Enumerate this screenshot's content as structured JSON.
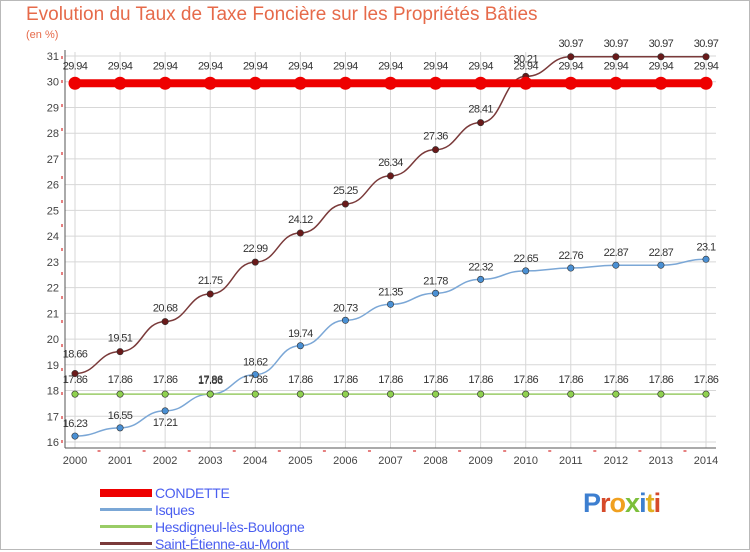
{
  "header": {
    "title": "Evolution du Taux de Taxe Foncière sur les Propriétés Bâties",
    "unit": "(en %)"
  },
  "logo": {
    "text": "Proxiti"
  },
  "colors": {
    "title": "#e66a4a",
    "grid": "#d7d7d7",
    "axis_marks": "#cc0000",
    "legend_text": "#4a5ef0"
  },
  "chart_data": {
    "type": "line",
    "title": "Evolution du Taux de Taxe Foncière sur les Propriétés Bâties",
    "ylabel": "(en %)",
    "xlabel": "",
    "x": [
      "2000",
      "2001",
      "2002",
      "2003",
      "2004",
      "2005",
      "2006",
      "2007",
      "2008",
      "2009",
      "2010",
      "2011",
      "2012",
      "2013",
      "2014"
    ],
    "ylim": [
      16,
      31
    ],
    "yticks": [
      16,
      17,
      18,
      19,
      20,
      21,
      22,
      23,
      24,
      25,
      26,
      27,
      28,
      29,
      30,
      31
    ],
    "grid": true,
    "legend_position": "bottom-left",
    "series": [
      {
        "name": "CONDETTE",
        "color": "#ee0000",
        "width": 8,
        "marker": "#ee0000",
        "values": [
          29.94,
          29.94,
          29.94,
          29.94,
          29.94,
          29.94,
          29.94,
          29.94,
          29.94,
          29.94,
          29.94,
          29.94,
          29.94,
          29.94,
          29.94
        ],
        "labels": [
          "29.94",
          "29.94",
          "29.94",
          "29.94",
          "29.94",
          "29.94",
          "29.94",
          "29.94",
          "29.94",
          "29.94",
          "29.94",
          "29.94",
          "29.94",
          "29.94",
          "29.94"
        ]
      },
      {
        "name": "Isques",
        "color": "#7ba7d6",
        "width": 1.5,
        "marker": "#4a90d4",
        "values": [
          16.23,
          16.55,
          17.21,
          17.86,
          18.62,
          19.74,
          20.73,
          21.35,
          21.78,
          22.32,
          22.65,
          22.76,
          22.87,
          22.87,
          23.1
        ],
        "labels": [
          "16.23",
          "16.55",
          "17.21",
          "17.86",
          "18.62",
          "19.74",
          "20.73",
          "21.35",
          "21.78",
          "22.32",
          "22.65",
          "22.76",
          "22.87",
          "22.87",
          "23.1"
        ]
      },
      {
        "name": "Hesdigneul-lès-Boulogne",
        "color": "#99cc66",
        "width": 1.5,
        "marker": "#8fd14f",
        "values": [
          17.86,
          17.86,
          17.86,
          17.86,
          17.86,
          17.86,
          17.86,
          17.86,
          17.86,
          17.86,
          17.86,
          17.86,
          17.86,
          17.86,
          17.86
        ],
        "labels": [
          "17.86",
          "17.86",
          "17.86",
          "17.86",
          "17.86",
          "17.86",
          "17.86",
          "17.86",
          "17.86",
          "17.86",
          "17.86",
          "17.86",
          "17.86",
          "17.86",
          "17.86"
        ]
      },
      {
        "name": "Saint-Étienne-au-Mont",
        "color": "#7a3a3a",
        "width": 1.5,
        "marker": "#6a1a1a",
        "values": [
          18.66,
          19.51,
          20.68,
          21.75,
          22.99,
          24.12,
          25.25,
          26.34,
          27.36,
          28.41,
          30.21,
          30.97,
          30.97,
          30.97,
          30.97
        ],
        "labels": [
          "18.66",
          "19.51",
          "20.68",
          "21.75",
          "22.99",
          "24.12",
          "25.25",
          "26.34",
          "27.36",
          "28.41",
          "30.21",
          "30.97",
          "30.97",
          "30.97",
          "30.97"
        ]
      }
    ]
  }
}
